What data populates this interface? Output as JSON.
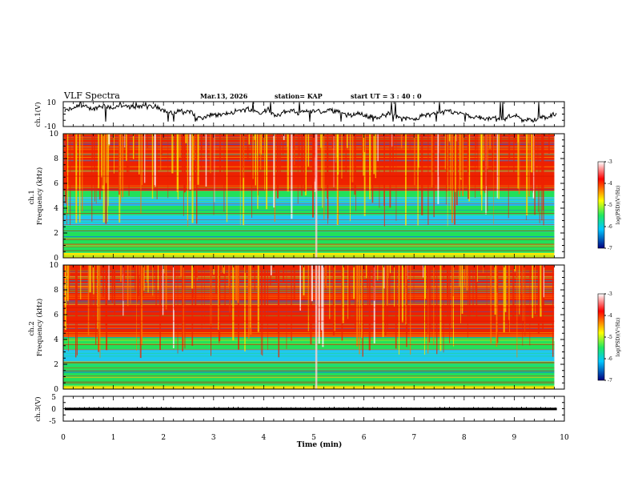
{
  "header": {
    "title": "VLF Spectra",
    "date": "Mar.13, 2026",
    "station": "station= KAP",
    "start_ut": "start  UT =   3 : 40 : 0"
  },
  "colors": {
    "low": "#000080",
    "mid_low": "#00c8ff",
    "mid": "#20e860",
    "mid_high": "#ffff00",
    "high": "#ff0000",
    "top": "#ffffff"
  },
  "chart_data": [
    {
      "type": "line",
      "name": "ch1-voltage",
      "ylabel": "ch.1(V)",
      "ylim": [
        -10,
        10
      ],
      "yticks": [
        "10",
        "-10"
      ],
      "xlim": [
        0,
        10
      ],
      "series_note": "noisy waveform, mostly between 0 and 5 V"
    },
    {
      "type": "heatmap",
      "name": "ch1-spectrogram",
      "ylabel": "ch.1\nFrequency (kHz)",
      "ylim": [
        0,
        10
      ],
      "yticks": [
        "0",
        "2",
        "4",
        "6",
        "8",
        "10"
      ],
      "xlim": [
        0,
        9.8
      ],
      "colorbar": {
        "label": "log(PSD)(V²/Hz)",
        "range": [
          -7,
          -3
        ],
        "ticks": [
          "-3",
          "-4",
          "-5",
          "-6",
          "-7"
        ]
      },
      "bands_khz": [
        {
          "from": 0.0,
          "to": 0.4,
          "level": "yellow"
        },
        {
          "from": 0.4,
          "to": 2.6,
          "level": "green"
        },
        {
          "from": 2.6,
          "to": 3.4,
          "level": "cyan"
        },
        {
          "from": 3.4,
          "to": 4.2,
          "level": "green"
        },
        {
          "from": 4.2,
          "to": 4.9,
          "level": "cyan"
        },
        {
          "from": 4.9,
          "to": 5.4,
          "level": "green"
        },
        {
          "from": 5.4,
          "to": 10.0,
          "level": "red"
        }
      ]
    },
    {
      "type": "heatmap",
      "name": "ch2-spectrogram",
      "ylabel": "ch.2\nFrequency (kHz)",
      "ylim": [
        0,
        10
      ],
      "yticks": [
        "0",
        "2",
        "4",
        "6",
        "8",
        "10"
      ],
      "xlim": [
        0,
        9.8
      ],
      "colorbar": {
        "label": "log(PSD)(V²/Hz)",
        "range": [
          -7,
          -3
        ],
        "ticks": [
          "-3",
          "-4",
          "-5",
          "-6",
          "-7"
        ]
      },
      "bands_khz": [
        {
          "from": 0.0,
          "to": 0.3,
          "level": "yellow"
        },
        {
          "from": 0.3,
          "to": 2.2,
          "level": "green"
        },
        {
          "from": 2.2,
          "to": 3.2,
          "level": "cyan"
        },
        {
          "from": 3.2,
          "to": 4.2,
          "level": "green"
        },
        {
          "from": 4.2,
          "to": 10.0,
          "level": "red"
        }
      ]
    },
    {
      "type": "line",
      "name": "ch3-voltage",
      "ylabel": "ch.3(V)",
      "ylim": [
        -5,
        5
      ],
      "yticks": [
        "5",
        "0",
        "-5"
      ],
      "xlim": [
        0,
        10
      ],
      "series_note": "flat thick trace near 0 V"
    }
  ],
  "xaxis": {
    "label": "Time (min)",
    "ticks": [
      "0",
      "1",
      "2",
      "3",
      "4",
      "5",
      "6",
      "7",
      "8",
      "9",
      "10"
    ]
  }
}
